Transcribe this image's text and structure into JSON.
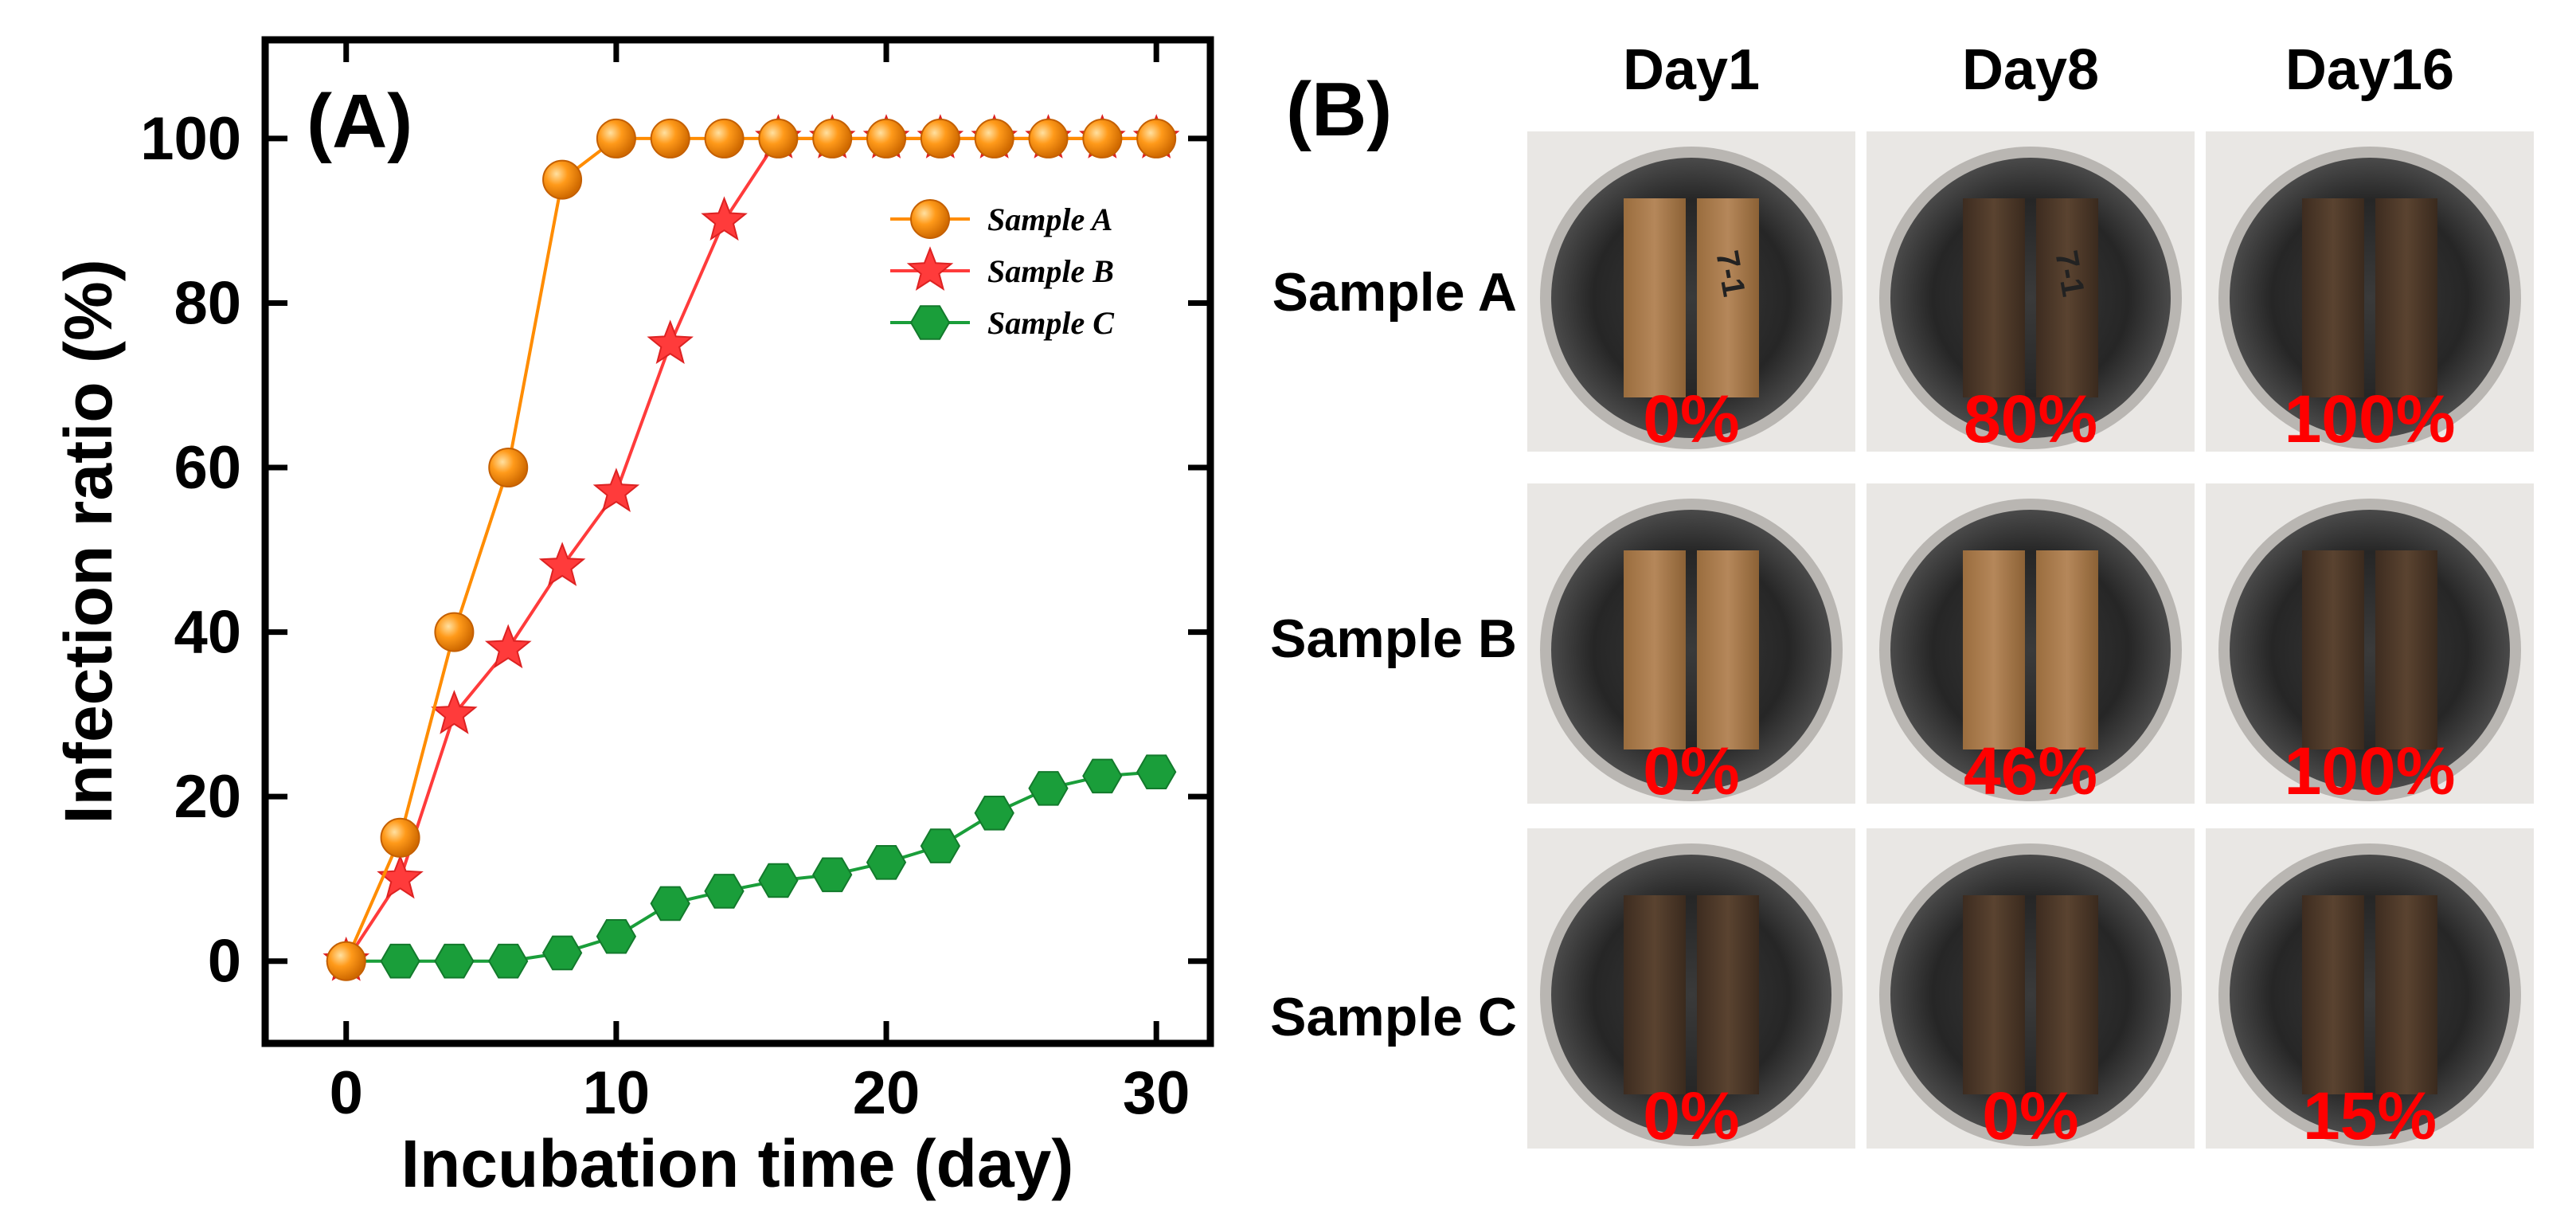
{
  "chart_data": {
    "type": "line",
    "panel_label": "(A)",
    "xlabel": "Incubation time (day)",
    "ylabel": "Infection ratio (%)",
    "xlim": [
      -3,
      32
    ],
    "ylim": [
      -10,
      112
    ],
    "xticks": [
      0,
      10,
      20,
      30
    ],
    "yticks": [
      0,
      20,
      40,
      60,
      80,
      100
    ],
    "grid": false,
    "legend_position": "top-right",
    "series": [
      {
        "name": "Sample A",
        "color": "#ff8c00",
        "marker": "circle",
        "x": [
          0,
          2,
          4,
          6,
          8,
          10,
          12,
          14,
          16,
          18,
          20,
          22,
          24,
          26,
          28,
          30
        ],
        "y": [
          0,
          15,
          40,
          60,
          95,
          100,
          100,
          100,
          100,
          100,
          100,
          100,
          100,
          100,
          100,
          100
        ]
      },
      {
        "name": "Sample B",
        "color": "#ff3b3b",
        "marker": "star",
        "x": [
          0,
          2,
          4,
          6,
          8,
          10,
          12,
          14,
          16,
          18,
          20,
          22,
          24,
          26,
          28,
          30
        ],
        "y": [
          0,
          10,
          30,
          38,
          48,
          57,
          75,
          90,
          100,
          100,
          100,
          100,
          100,
          100,
          100,
          100
        ]
      },
      {
        "name": "Sample C",
        "color": "#1a9e3a",
        "marker": "hexagon",
        "x": [
          0,
          2,
          4,
          6,
          8,
          10,
          12,
          14,
          16,
          18,
          20,
          22,
          24,
          26,
          28,
          30
        ],
        "y": [
          0,
          0,
          0,
          0,
          1,
          3,
          7,
          8.5,
          9.8,
          10.5,
          12,
          14,
          18,
          21,
          22.5,
          23
        ]
      }
    ]
  },
  "panel_b": {
    "label": "(B)",
    "columns": [
      "Day1",
      "Day8",
      "Day16"
    ],
    "rows": [
      {
        "name": "Sample A",
        "percents": [
          "0%",
          "80%",
          "100%"
        ]
      },
      {
        "name": "Sample B",
        "percents": [
          "0%",
          "46%",
          "100%"
        ]
      },
      {
        "name": "Sample C",
        "percents": [
          "0%",
          "0%",
          "15%"
        ]
      }
    ],
    "sample_label_text": "7-1",
    "percent_color": "#ff0000"
  }
}
